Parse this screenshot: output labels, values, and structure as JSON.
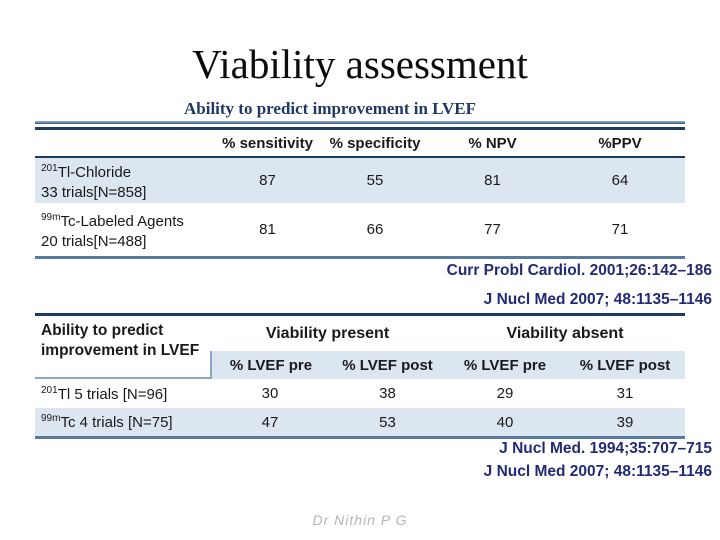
{
  "slide": {
    "title": "Viability assessment",
    "subtitle": "Ability to predict improvement in LVEF",
    "footer": "Dr Nithin P G"
  },
  "colors": {
    "row_highlight": "#dce6f1",
    "border_dark_navy": "#1c3c5e",
    "border_slate": "#567b9b",
    "border_light_slate": "#8ba7c7",
    "subtitle_text": "#1f3864",
    "citation_text": "#232a75",
    "footer_text": "#b5b5b5"
  },
  "table1": {
    "columns": [
      "% sensitivity",
      "% specificity",
      "% NPV",
      "%PPV"
    ],
    "rows": [
      {
        "sup": "201",
        "name": "Tl-Chloride",
        "line2": "33 trials[N=858]",
        "v1": "87",
        "v2": "55",
        "v3": "81",
        "v4": "64"
      },
      {
        "sup": "99m",
        "name": "Tc-Labeled Agents",
        "line2": "20 trials[N=488]",
        "v1": "81",
        "v2": "66",
        "v3": "77",
        "v4": "71"
      }
    ]
  },
  "citations_mid": {
    "line1": "Curr Probl Cardiol. 2001;26:142–186",
    "line2": "J Nucl Med 2007; 48:1135–1146"
  },
  "table2": {
    "corner_label": "Ability to predict improvement in LVEF",
    "group1": "Viability present",
    "group2": "Viability absent",
    "sub1": "% LVEF pre",
    "sub2": "% LVEF post",
    "sub3": "% LVEF pre",
    "sub4": "% LVEF post",
    "rows": [
      {
        "sup": "201",
        "name": "Tl 5 trials [N=96]",
        "v1": "30",
        "v2": "38",
        "v3": "29",
        "v4": "31"
      },
      {
        "sup": "99m",
        "name": "Tc 4 trials [N=75]",
        "v1": "47",
        "v2": "53",
        "v3": "40",
        "v4": "39"
      }
    ]
  },
  "citations_bottom": {
    "line1": "J Nucl Med. 1994;35:707–715",
    "line2": "J Nucl Med 2007; 48:1135–1146"
  }
}
